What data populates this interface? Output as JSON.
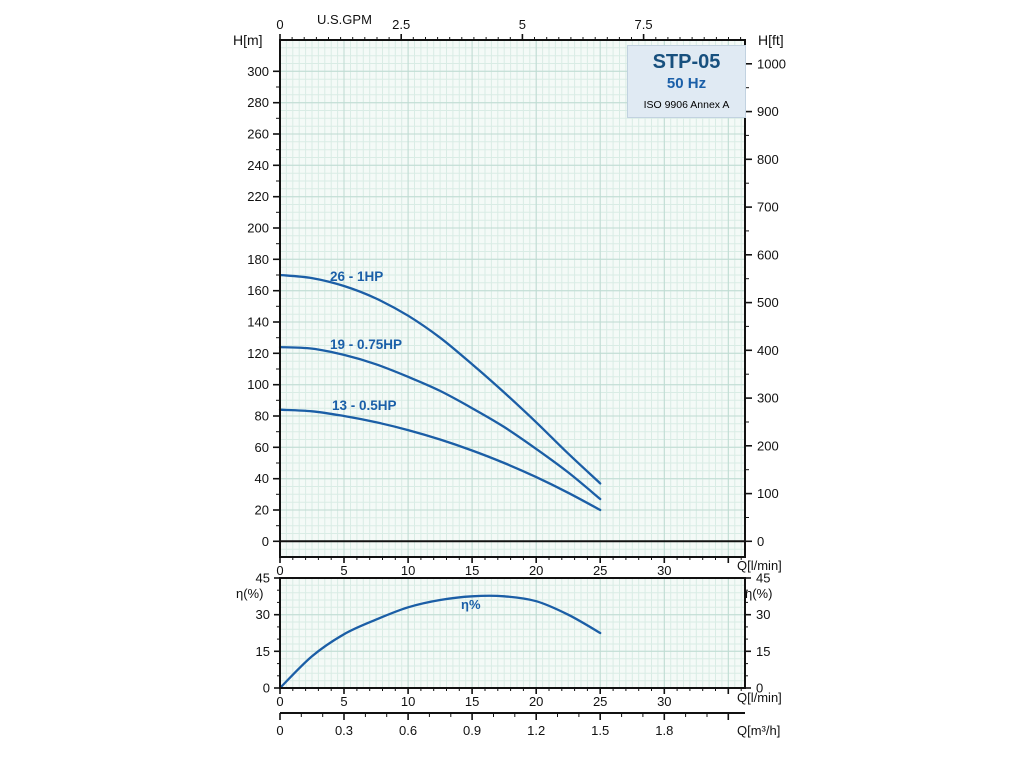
{
  "title_box": {
    "model": "STP-05",
    "frequency": "50 Hz",
    "standard": "ISO 9906 Annex A"
  },
  "colors": {
    "curve": "#1b5ea6",
    "curve_label": "#1a5fa8",
    "plot_bg": "#f4faf7",
    "grid_minor": "#d9ece5",
    "grid_major": "#bedbd2",
    "frame": "#111111",
    "text": "#111111"
  },
  "chart_data": [
    {
      "id": "head-curves",
      "type": "line",
      "xlabel": "Q[l/min]",
      "xlabel_top": "U.S.GPM",
      "ylabel_left": "H[m]",
      "ylabel_right": "H[ft]",
      "xlim": [
        0,
        36.3
      ],
      "ylim": [
        -10,
        320
      ],
      "x_ticks": [
        0,
        5,
        10,
        15,
        20,
        25,
        30
      ],
      "y_ticks_left_m": [
        0,
        20,
        40,
        60,
        80,
        100,
        120,
        140,
        160,
        180,
        200,
        220,
        240,
        260,
        280,
        300
      ],
      "y_ticks_right_ft": [
        0,
        100,
        200,
        300,
        400,
        500,
        600,
        700,
        800,
        900,
        1000
      ],
      "x_ticks_top_gpm": [
        0,
        2.5,
        5,
        7.5
      ],
      "ft_to_m": 0.3048,
      "gpm_to_lmin": 3.785,
      "grid": true,
      "series": [
        {
          "name": "26 - 1HP",
          "x": [
            0,
            2.5,
            5,
            7.5,
            10,
            12.5,
            15,
            17.5,
            20,
            22.5,
            25
          ],
          "y": [
            170,
            168,
            163,
            155,
            144,
            130,
            113,
            95,
            76,
            56,
            37
          ]
        },
        {
          "name": "19 - 0.75HP",
          "x": [
            0,
            2.5,
            5,
            7.5,
            10,
            12.5,
            15,
            17.5,
            20,
            22.5,
            25
          ],
          "y": [
            124,
            123,
            119,
            113,
            105,
            96,
            85,
            73,
            59,
            44,
            27
          ]
        },
        {
          "name": "13 - 0.5HP",
          "x": [
            0,
            2.5,
            5,
            7.5,
            10,
            12.5,
            15,
            17.5,
            20,
            22.5,
            25
          ],
          "y": [
            84,
            83,
            80,
            76,
            71,
            65,
            58,
            50,
            41,
            31,
            20
          ]
        }
      ]
    },
    {
      "id": "efficiency",
      "type": "line",
      "xlabel": "Q[l/min]",
      "ylabel": "η(%)",
      "xlim": [
        0,
        36.3
      ],
      "ylim": [
        0,
        45
      ],
      "x_ticks": [
        0,
        5,
        10,
        15,
        20,
        25,
        30
      ],
      "y_ticks": [
        0,
        15,
        30,
        45
      ],
      "grid": true,
      "series": [
        {
          "name": "η%",
          "x": [
            0,
            2.5,
            5,
            7.5,
            10,
            12.5,
            15,
            17.5,
            20,
            22.5,
            25
          ],
          "y": [
            0,
            13,
            22,
            28,
            33,
            36,
            37.5,
            37.5,
            35.5,
            30,
            22.5
          ]
        }
      ]
    },
    {
      "id": "flow-m3h-axis",
      "type": "axis",
      "label": "Q[m³/h]",
      "ticks": [
        0,
        0.3,
        0.6,
        0.9,
        1.2,
        1.5,
        1.8
      ],
      "lmin_per_m3h": 16.6667
    }
  ]
}
